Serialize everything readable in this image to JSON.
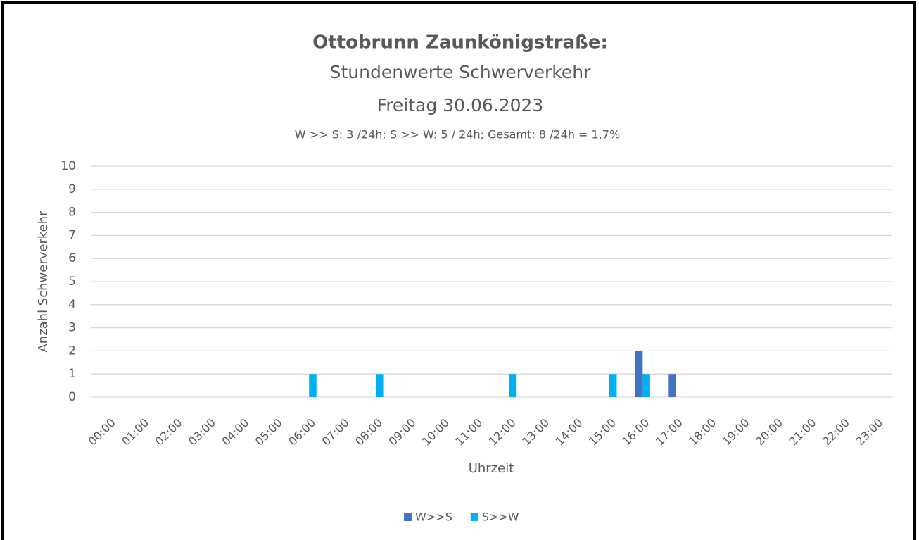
{
  "chart_data": {
    "type": "bar",
    "title": "Ottobrunn Zaunkönigstraße:",
    "subtitle": [
      "Stundenwerte Schwerverkehr",
      "Freitag 30.06.2023",
      "W >> S: 3 /24h; S >> W: 5 / 24h; Gesamt: 8 /24h =  1,7%"
    ],
    "y_label": "Anzahl Schwerverkehr",
    "x_label": "Uhrzeit",
    "categories": [
      "00:00",
      "01:00",
      "02:00",
      "03:00",
      "04:00",
      "05:00",
      "06:00",
      "07:00",
      "08:00",
      "09:00",
      "10:00",
      "11:00",
      "12:00",
      "13:00",
      "14:00",
      "15:00",
      "16:00",
      "17:00",
      "18:00",
      "19:00",
      "20:00",
      "21:00",
      "22:00",
      "23:00"
    ],
    "series": [
      {
        "name": "W>>S",
        "color": "#4472c4",
        "values": [
          0,
          0,
          0,
          0,
          0,
          0,
          0,
          0,
          0,
          0,
          0,
          0,
          0,
          0,
          0,
          0,
          2,
          1,
          0,
          0,
          0,
          0,
          0,
          0
        ]
      },
      {
        "name": "S>>W",
        "color": "#00b0f0",
        "values": [
          0,
          0,
          0,
          0,
          0,
          0,
          1,
          0,
          1,
          0,
          0,
          0,
          1,
          0,
          0,
          1,
          1,
          0,
          0,
          0,
          0,
          0,
          0,
          0
        ]
      }
    ],
    "ylim": [
      0,
      10
    ],
    "yticks": [
      0,
      1,
      2,
      3,
      4,
      5,
      6,
      7,
      8,
      9,
      10
    ],
    "grid": true,
    "legend": "bottom"
  }
}
